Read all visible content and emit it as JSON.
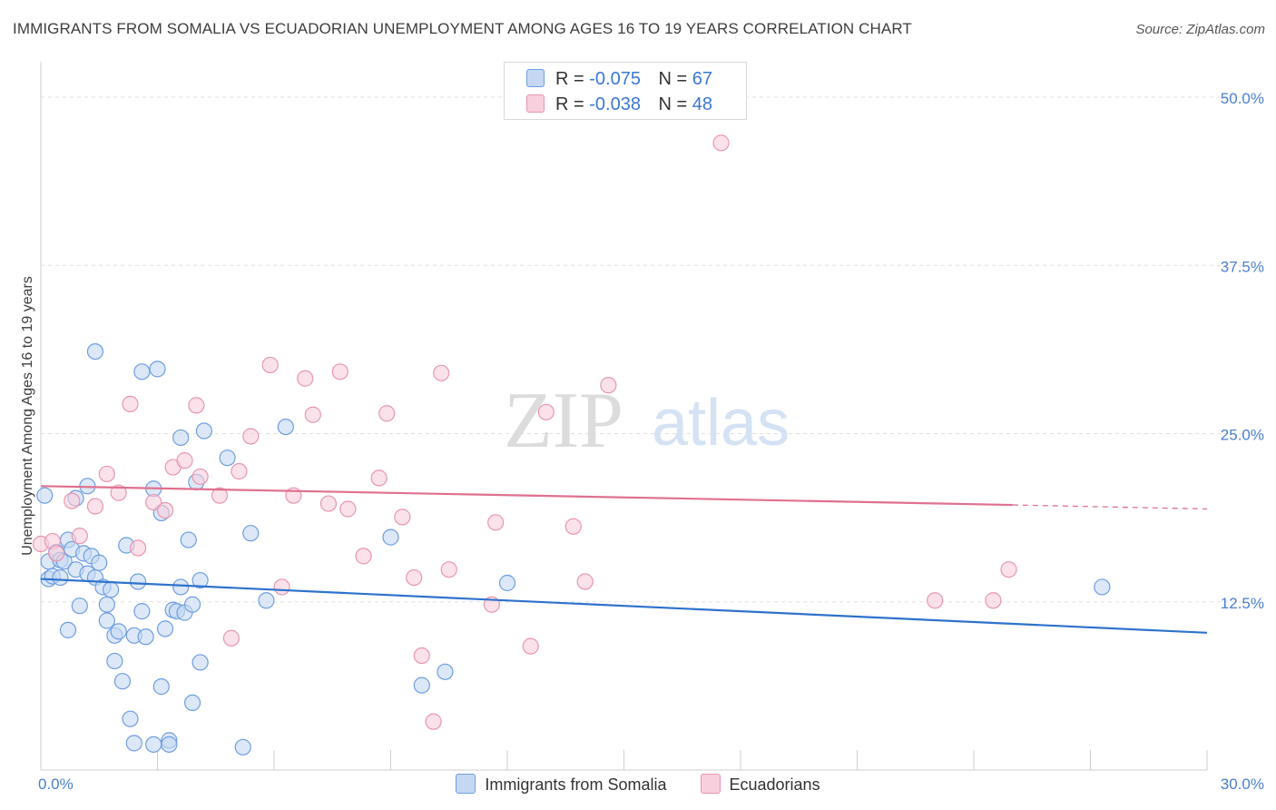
{
  "title": "IMMIGRANTS FROM SOMALIA VS ECUADORIAN UNEMPLOYMENT AMONG AGES 16 TO 19 YEARS CORRELATION CHART",
  "source": "Source: ZipAtlas.com",
  "watermark": {
    "zip": "ZIP",
    "atlas": "atlas"
  },
  "legend": {
    "r_label": "R =",
    "n_label": "N =",
    "rows": [
      {
        "r": "-0.075",
        "n": "67"
      },
      {
        "r": "-0.038",
        "n": "48"
      }
    ]
  },
  "bottom_legend": [
    "Immigrants from Somalia",
    "Ecuadorians"
  ],
  "colors": {
    "blue_fill": "#c5d8f3",
    "blue_stroke": "#6e9ee0",
    "blue_line": "#2f72cc",
    "pink_fill": "#f8cfdc",
    "pink_stroke": "#e896b0",
    "pink_line": "#e0708f",
    "tick_text": "#4a7fcc",
    "grid": "#e0e0e0"
  },
  "chart_data": {
    "type": "scatter",
    "title": "IMMIGRANTS FROM SOMALIA VS ECUADORIAN UNEMPLOYMENT AMONG AGES 16 TO 19 YEARS CORRELATION CHART",
    "xlabel": "",
    "ylabel": "Unemployment Among Ages 16 to 19 years",
    "xlim": [
      0,
      30
    ],
    "ylim": [
      0,
      50
    ],
    "x_tick_labels": [
      {
        "value": 0,
        "label": "0.0%"
      },
      {
        "value": 30,
        "label": "30.0%"
      }
    ],
    "y_tick_labels": [
      {
        "value": 12.5,
        "label": "12.5%"
      },
      {
        "value": 25.0,
        "label": "25.0%"
      },
      {
        "value": 37.5,
        "label": "37.5%"
      },
      {
        "value": 50.0,
        "label": "50.0%"
      }
    ],
    "series": [
      {
        "name": "Immigrants from Somalia",
        "color": "#6e9ee0",
        "r": -0.075,
        "n": 67,
        "trend": {
          "x": [
            0,
            30
          ],
          "y": [
            14.2,
            10.2
          ]
        },
        "points": [
          [
            0.1,
            20.4
          ],
          [
            0.2,
            15.5
          ],
          [
            0.2,
            14.2
          ],
          [
            0.3,
            14.4
          ],
          [
            0.4,
            16.2
          ],
          [
            0.5,
            14.3
          ],
          [
            0.5,
            15.6
          ],
          [
            0.6,
            15.5
          ],
          [
            0.7,
            10.4
          ],
          [
            0.7,
            17.1
          ],
          [
            0.8,
            16.4
          ],
          [
            0.9,
            14.9
          ],
          [
            0.9,
            20.2
          ],
          [
            1.0,
            12.2
          ],
          [
            1.1,
            16.1
          ],
          [
            1.2,
            14.6
          ],
          [
            1.2,
            21.1
          ],
          [
            1.3,
            15.9
          ],
          [
            1.4,
            14.3
          ],
          [
            1.4,
            31.1
          ],
          [
            1.5,
            15.4
          ],
          [
            1.6,
            13.6
          ],
          [
            1.7,
            12.3
          ],
          [
            1.7,
            11.1
          ],
          [
            1.8,
            13.4
          ],
          [
            1.9,
            8.1
          ],
          [
            1.9,
            10.0
          ],
          [
            2.0,
            10.3
          ],
          [
            2.1,
            6.6
          ],
          [
            2.2,
            16.7
          ],
          [
            2.3,
            3.8
          ],
          [
            2.4,
            10.0
          ],
          [
            2.4,
            2.0
          ],
          [
            2.5,
            14.0
          ],
          [
            2.6,
            29.6
          ],
          [
            2.6,
            11.8
          ],
          [
            2.7,
            9.9
          ],
          [
            2.9,
            1.9
          ],
          [
            2.9,
            20.9
          ],
          [
            3.0,
            29.8
          ],
          [
            3.1,
            19.1
          ],
          [
            3.1,
            6.2
          ],
          [
            3.2,
            10.5
          ],
          [
            3.3,
            2.2
          ],
          [
            3.3,
            1.9
          ],
          [
            3.4,
            11.9
          ],
          [
            3.5,
            11.8
          ],
          [
            3.6,
            13.6
          ],
          [
            3.6,
            24.7
          ],
          [
            3.7,
            11.7
          ],
          [
            3.8,
            17.1
          ],
          [
            3.9,
            5.0
          ],
          [
            3.9,
            12.3
          ],
          [
            4.0,
            21.4
          ],
          [
            4.1,
            14.1
          ],
          [
            4.1,
            8.0
          ],
          [
            4.2,
            25.2
          ],
          [
            4.8,
            23.2
          ],
          [
            5.2,
            1.7
          ],
          [
            5.4,
            17.6
          ],
          [
            5.8,
            12.6
          ],
          [
            6.3,
            25.5
          ],
          [
            9.0,
            17.3
          ],
          [
            9.8,
            6.3
          ],
          [
            10.4,
            7.3
          ],
          [
            12.0,
            13.9
          ],
          [
            27.3,
            13.6
          ]
        ]
      },
      {
        "name": "Ecuadorians",
        "color": "#e896b0",
        "r": -0.038,
        "n": 48,
        "trend": {
          "x": [
            0,
            25.0
          ],
          "y": [
            21.1,
            19.7
          ]
        },
        "trend_dashed": {
          "x": [
            25.0,
            30
          ],
          "y": [
            19.7,
            19.4
          ]
        },
        "points": [
          [
            0.0,
            16.8
          ],
          [
            0.3,
            17.0
          ],
          [
            0.4,
            16.1
          ],
          [
            0.8,
            20.0
          ],
          [
            1.0,
            17.4
          ],
          [
            1.4,
            19.6
          ],
          [
            1.7,
            22.0
          ],
          [
            2.0,
            20.6
          ],
          [
            2.3,
            27.2
          ],
          [
            2.5,
            16.5
          ],
          [
            2.9,
            19.9
          ],
          [
            3.2,
            19.3
          ],
          [
            3.4,
            22.5
          ],
          [
            3.7,
            23.0
          ],
          [
            4.0,
            27.1
          ],
          [
            4.1,
            21.8
          ],
          [
            4.6,
            20.4
          ],
          [
            4.9,
            9.8
          ],
          [
            5.1,
            22.2
          ],
          [
            5.4,
            24.8
          ],
          [
            5.9,
            30.1
          ],
          [
            6.2,
            13.6
          ],
          [
            6.5,
            20.4
          ],
          [
            6.8,
            29.1
          ],
          [
            7.0,
            26.4
          ],
          [
            7.4,
            19.8
          ],
          [
            7.7,
            29.6
          ],
          [
            7.9,
            19.4
          ],
          [
            8.3,
            15.9
          ],
          [
            8.7,
            21.7
          ],
          [
            8.9,
            26.5
          ],
          [
            9.3,
            18.8
          ],
          [
            9.6,
            14.3
          ],
          [
            9.8,
            8.5
          ],
          [
            10.1,
            3.6
          ],
          [
            10.3,
            29.5
          ],
          [
            10.5,
            14.9
          ],
          [
            11.6,
            12.3
          ],
          [
            11.7,
            18.4
          ],
          [
            12.6,
            9.2
          ],
          [
            13.0,
            26.6
          ],
          [
            13.7,
            18.1
          ],
          [
            14.0,
            14.0
          ],
          [
            14.6,
            28.6
          ],
          [
            17.5,
            46.6
          ],
          [
            23.0,
            12.6
          ],
          [
            24.5,
            12.6
          ],
          [
            24.9,
            14.9
          ]
        ]
      }
    ]
  }
}
